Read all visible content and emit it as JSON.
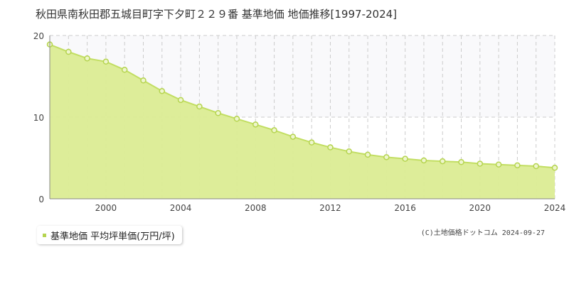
{
  "header": {
    "title": "秋田県南秋田郡五城目町字下夕町２２９番 基準地価 地価推移[1997-2024]"
  },
  "legend": {
    "label": "基準地価 平均坪単価(万円/坪)"
  },
  "footer": {
    "copyright": "(C)土地価格ドットコム 2024-09-27"
  },
  "colors": {
    "fill": "#dbec94",
    "line": "#c2de62",
    "marker": "#b5d44f",
    "grid": "#cccccc",
    "axis": "#888888"
  },
  "chart_data": {
    "type": "area",
    "x": [
      1997,
      1998,
      1999,
      2000,
      2001,
      2002,
      2003,
      2004,
      2005,
      2006,
      2007,
      2008,
      2009,
      2010,
      2011,
      2012,
      2013,
      2014,
      2015,
      2016,
      2017,
      2018,
      2019,
      2020,
      2021,
      2022,
      2023,
      2024
    ],
    "series": [
      {
        "name": "基準地価 平均坪単価(万円/坪)",
        "values": [
          18.9,
          18.0,
          17.2,
          16.8,
          15.8,
          14.5,
          13.2,
          12.1,
          11.3,
          10.5,
          9.8,
          9.1,
          8.4,
          7.6,
          6.9,
          6.3,
          5.8,
          5.4,
          5.1,
          4.9,
          4.7,
          4.6,
          4.5,
          4.3,
          4.2,
          4.1,
          4.0,
          3.8
        ]
      }
    ],
    "xlim": [
      1997,
      2024
    ],
    "ylim": [
      0,
      20
    ],
    "x_ticks": [
      "2000",
      "2004",
      "2008",
      "2012",
      "2016",
      "2020",
      "2024"
    ],
    "y_ticks": [
      "0",
      "10",
      "20"
    ],
    "grid": true
  }
}
